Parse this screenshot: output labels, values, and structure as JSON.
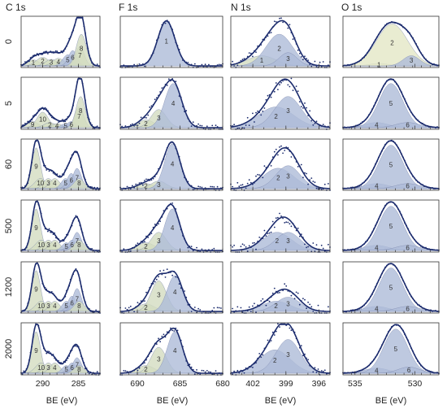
{
  "chart_data": {
    "type": "line",
    "xlabel": "BE (eV)",
    "colors": {
      "fit": "#1c2c6e",
      "points": "#1c2c6e",
      "blue_peak": "#aebcd8",
      "green_peak": "#d3dcc0",
      "yellow_peak": "#e3e7c6"
    },
    "columns": [
      {
        "title": "C 1s",
        "x_range": [
          293,
          282
        ],
        "ticks": [
          290,
          285
        ],
        "tick_labels": [
          "290",
          "285"
        ]
      },
      {
        "title": "F 1s",
        "x_range": [
          692,
          680
        ],
        "ticks": [
          690,
          685,
          680
        ],
        "tick_labels": [
          "690",
          "685",
          "680"
        ]
      },
      {
        "title": "N 1s",
        "x_range": [
          404,
          395
        ],
        "ticks": [
          402,
          399,
          396
        ],
        "tick_labels": [
          "402",
          "399",
          "396"
        ]
      },
      {
        "title": "O 1s",
        "x_range": [
          536,
          528
        ],
        "ticks": [
          535,
          530
        ],
        "tick_labels": [
          "535",
          "530"
        ]
      }
    ],
    "rows": [
      "0",
      "5",
      "60",
      "500",
      "1200",
      "2000"
    ],
    "panels": [
      [
        {
          "noise": 0.02,
          "peaks": [
            {
              "label": "1",
              "c": 291.3,
              "a": 0.12,
              "w": 0.8,
              "color": "green_peak"
            },
            {
              "label": "2",
              "c": 290.0,
              "a": 0.17,
              "w": 0.9,
              "color": "green_peak"
            },
            {
              "label": "3",
              "c": 288.8,
              "a": 0.13,
              "w": 0.8,
              "color": "green_peak"
            },
            {
              "label": "4",
              "c": 287.8,
              "a": 0.15,
              "w": 0.8,
              "color": "green_peak"
            },
            {
              "label": "5",
              "c": 286.5,
              "a": 0.22,
              "w": 0.7,
              "color": "blue_peak"
            },
            {
              "label": "6",
              "c": 285.8,
              "a": 0.3,
              "w": 0.6,
              "color": "blue_peak"
            },
            {
              "label": "7",
              "c": 284.8,
              "a": 0.38,
              "w": 0.6,
              "color": "green_peak"
            },
            {
              "label": "8",
              "c": 284.6,
              "a": 0.62,
              "w": 0.7,
              "color": "green_peak"
            }
          ]
        },
        {
          "noise": 0.03,
          "peaks": [
            {
              "label": "1",
              "c": 686.6,
              "a": 0.88,
              "w": 1.0,
              "color": "blue_peak"
            }
          ]
        },
        {
          "noise": 0.07,
          "peaks": [
            {
              "label": "1",
              "c": 401.2,
              "a": 0.2,
              "w": 1.3,
              "color": "green_peak"
            },
            {
              "label": "2",
              "c": 399.6,
              "a": 0.62,
              "w": 1.2,
              "color": "blue_peak"
            },
            {
              "label": "3",
              "c": 398.8,
              "a": 0.26,
              "w": 0.8,
              "color": "blue_peak"
            }
          ]
        },
        {
          "noise": 0.0,
          "peaks": [
            {
              "label": "1",
              "c": 533.0,
              "a": 0.05,
              "w": 0.8,
              "color": "yellow_peak"
            },
            {
              "label": "2",
              "c": 531.9,
              "a": 0.82,
              "w": 1.3,
              "color": "yellow_peak"
            },
            {
              "label": "3",
              "c": 530.3,
              "a": 0.2,
              "w": 0.7,
              "color": "blue_peak"
            }
          ]
        }
      ],
      [
        {
          "noise": 0.02,
          "peaks": [
            {
              "label": "9",
              "c": 291.4,
              "a": 0.12,
              "w": 0.8,
              "color": "green_peak"
            },
            {
              "label": "10",
              "c": 290.0,
              "a": 0.3,
              "w": 0.8,
              "color": "green_peak"
            },
            {
              "label": "2",
              "c": 289.0,
              "a": 0.1,
              "w": 0.8,
              "color": "green_peak"
            },
            {
              "label": "4",
              "c": 288.0,
              "a": 0.08,
              "w": 0.7,
              "color": "green_peak"
            },
            {
              "label": "5",
              "c": 286.8,
              "a": 0.08,
              "w": 0.6,
              "color": "blue_peak"
            },
            {
              "label": "6",
              "c": 286.0,
              "a": 0.12,
              "w": 0.6,
              "color": "blue_peak"
            },
            {
              "label": "7",
              "c": 284.9,
              "a": 0.4,
              "w": 0.6,
              "color": "green_peak"
            },
            {
              "label": "8",
              "c": 284.7,
              "a": 0.6,
              "w": 0.65,
              "color": "green_peak"
            }
          ]
        },
        {
          "noise": 0.05,
          "peaks": [
            {
              "label": "2",
              "c": 689.0,
              "a": 0.15,
              "w": 1.0,
              "color": "green_peak"
            },
            {
              "label": "3",
              "c": 687.5,
              "a": 0.35,
              "w": 0.9,
              "color": "green_peak"
            },
            {
              "label": "4",
              "c": 685.8,
              "a": 0.85,
              "w": 1.0,
              "color": "blue_peak"
            }
          ]
        },
        {
          "noise": 0.1,
          "peaks": [
            {
              "label": "2",
              "c": 399.9,
              "a": 0.4,
              "w": 1.6,
              "color": "blue_peak"
            },
            {
              "label": "3",
              "c": 398.8,
              "a": 0.6,
              "w": 1.2,
              "color": "blue_peak"
            }
          ]
        },
        {
          "noise": 0.0,
          "peaks": [
            {
              "label": "4",
              "c": 533.2,
              "a": 0.1,
              "w": 1.0,
              "color": "blue_peak"
            },
            {
              "label": "5",
              "c": 532.0,
              "a": 0.85,
              "w": 1.0,
              "color": "blue_peak"
            },
            {
              "label": "6",
              "c": 530.6,
              "a": 0.1,
              "w": 1.0,
              "color": "blue_peak"
            }
          ]
        }
      ],
      [
        {
          "noise": 0.02,
          "peaks": [
            {
              "label": "9",
              "c": 290.9,
              "a": 0.8,
              "w": 0.6,
              "color": "green_peak"
            },
            {
              "label": "10",
              "c": 290.3,
              "a": 0.2,
              "w": 0.8,
              "color": "green_peak"
            },
            {
              "label": "3",
              "c": 289.2,
              "a": 0.2,
              "w": 0.7,
              "color": "green_peak"
            },
            {
              "label": "4",
              "c": 288.3,
              "a": 0.2,
              "w": 0.7,
              "color": "green_peak"
            },
            {
              "label": "5",
              "c": 286.8,
              "a": 0.2,
              "w": 0.6,
              "color": "blue_peak"
            },
            {
              "label": "6",
              "c": 286.0,
              "a": 0.3,
              "w": 0.6,
              "color": "blue_peak"
            },
            {
              "label": "7",
              "c": 285.2,
              "a": 0.4,
              "w": 0.6,
              "color": "blue_peak"
            },
            {
              "label": "8",
              "c": 284.9,
              "a": 0.2,
              "w": 0.7,
              "color": "green_peak"
            }
          ]
        },
        {
          "noise": 0.03,
          "peaks": [
            {
              "label": "2",
              "c": 689.0,
              "a": 0.1,
              "w": 1.0,
              "color": "green_peak"
            },
            {
              "label": "3",
              "c": 687.5,
              "a": 0.15,
              "w": 0.9,
              "color": "green_peak"
            },
            {
              "label": "4",
              "c": 685.9,
              "a": 0.88,
              "w": 0.9,
              "color": "blue_peak"
            }
          ]
        },
        {
          "noise": 0.1,
          "peaks": [
            {
              "label": "2",
              "c": 399.7,
              "a": 0.4,
              "w": 1.4,
              "color": "blue_peak"
            },
            {
              "label": "3",
              "c": 398.8,
              "a": 0.45,
              "w": 1.1,
              "color": "blue_peak"
            }
          ]
        },
        {
          "noise": 0.0,
          "peaks": [
            {
              "label": "4",
              "c": 533.2,
              "a": 0.1,
              "w": 1.0,
              "color": "blue_peak"
            },
            {
              "label": "5",
              "c": 532.0,
              "a": 0.85,
              "w": 1.0,
              "color": "blue_peak"
            },
            {
              "label": "6",
              "c": 530.6,
              "a": 0.1,
              "w": 1.0,
              "color": "blue_peak"
            }
          ]
        }
      ],
      [
        {
          "noise": 0.02,
          "peaks": [
            {
              "label": "9",
              "c": 290.9,
              "a": 0.8,
              "w": 0.6,
              "color": "green_peak"
            },
            {
              "label": "10",
              "c": 290.2,
              "a": 0.2,
              "w": 0.8,
              "color": "green_peak"
            },
            {
              "label": "3",
              "c": 289.2,
              "a": 0.2,
              "w": 0.7,
              "color": "green_peak"
            },
            {
              "label": "4",
              "c": 288.3,
              "a": 0.2,
              "w": 0.7,
              "color": "green_peak"
            },
            {
              "label": "5",
              "c": 286.7,
              "a": 0.15,
              "w": 0.6,
              "color": "blue_peak"
            },
            {
              "label": "6",
              "c": 285.9,
              "a": 0.2,
              "w": 0.6,
              "color": "blue_peak"
            },
            {
              "label": "7",
              "c": 285.2,
              "a": 0.35,
              "w": 0.6,
              "color": "blue_peak"
            },
            {
              "label": "8",
              "c": 284.9,
              "a": 0.2,
              "w": 0.7,
              "color": "green_peak"
            }
          ]
        },
        {
          "noise": 0.04,
          "peaks": [
            {
              "label": "2",
              "c": 689.0,
              "a": 0.15,
              "w": 1.0,
              "color": "green_peak"
            },
            {
              "label": "3",
              "c": 687.5,
              "a": 0.35,
              "w": 0.9,
              "color": "green_peak"
            },
            {
              "label": "4",
              "c": 685.9,
              "a": 0.8,
              "w": 0.9,
              "color": "blue_peak"
            }
          ]
        },
        {
          "noise": 0.1,
          "peaks": [
            {
              "label": "2",
              "c": 399.8,
              "a": 0.35,
              "w": 1.3,
              "color": "blue_peak"
            },
            {
              "label": "3",
              "c": 398.8,
              "a": 0.35,
              "w": 1.1,
              "color": "blue_peak"
            }
          ]
        },
        {
          "noise": 0.0,
          "peaks": [
            {
              "label": "4",
              "c": 533.2,
              "a": 0.1,
              "w": 1.0,
              "color": "blue_peak"
            },
            {
              "label": "5",
              "c": 532.0,
              "a": 0.85,
              "w": 1.0,
              "color": "blue_peak"
            },
            {
              "label": "6",
              "c": 530.6,
              "a": 0.1,
              "w": 1.0,
              "color": "blue_peak"
            }
          ]
        }
      ],
      [
        {
          "noise": 0.02,
          "peaks": [
            {
              "label": "9",
              "c": 290.9,
              "a": 0.8,
              "w": 0.6,
              "color": "green_peak"
            },
            {
              "label": "10",
              "c": 290.2,
              "a": 0.2,
              "w": 0.8,
              "color": "green_peak"
            },
            {
              "label": "3",
              "c": 289.2,
              "a": 0.2,
              "w": 0.7,
              "color": "green_peak"
            },
            {
              "label": "4",
              "c": 288.3,
              "a": 0.2,
              "w": 0.7,
              "color": "green_peak"
            },
            {
              "label": "5",
              "c": 286.7,
              "a": 0.2,
              "w": 0.6,
              "color": "blue_peak"
            },
            {
              "label": "6",
              "c": 285.9,
              "a": 0.3,
              "w": 0.6,
              "color": "blue_peak"
            },
            {
              "label": "7",
              "c": 285.2,
              "a": 0.45,
              "w": 0.6,
              "color": "blue_peak"
            },
            {
              "label": "8",
              "c": 284.9,
              "a": 0.2,
              "w": 0.7,
              "color": "green_peak"
            }
          ]
        },
        {
          "noise": 0.07,
          "peaks": [
            {
              "label": "2",
              "c": 689.0,
              "a": 0.15,
              "w": 1.0,
              "color": "green_peak"
            },
            {
              "label": "3",
              "c": 687.5,
              "a": 0.6,
              "w": 0.9,
              "color": "green_peak"
            },
            {
              "label": "4",
              "c": 685.6,
              "a": 0.7,
              "w": 0.9,
              "color": "blue_peak"
            }
          ]
        },
        {
          "noise": 0.1,
          "peaks": [
            {
              "label": "2",
              "c": 399.9,
              "a": 0.2,
              "w": 1.3,
              "color": "blue_peak"
            },
            {
              "label": "3",
              "c": 398.8,
              "a": 0.28,
              "w": 1.1,
              "color": "blue_peak"
            }
          ]
        },
        {
          "noise": 0.0,
          "peaks": [
            {
              "label": "4",
              "c": 533.2,
              "a": 0.1,
              "w": 1.0,
              "color": "blue_peak"
            },
            {
              "label": "5",
              "c": 532.0,
              "a": 0.85,
              "w": 1.0,
              "color": "blue_peak"
            },
            {
              "label": "6",
              "c": 530.6,
              "a": 0.1,
              "w": 1.0,
              "color": "blue_peak"
            }
          ]
        }
      ],
      [
        {
          "noise": 0.02,
          "peaks": [
            {
              "label": "9",
              "c": 290.9,
              "a": 0.8,
              "w": 0.6,
              "color": "green_peak"
            },
            {
              "label": "10",
              "c": 290.2,
              "a": 0.2,
              "w": 0.8,
              "color": "green_peak"
            },
            {
              "label": "3",
              "c": 289.2,
              "a": 0.2,
              "w": 0.7,
              "color": "green_peak"
            },
            {
              "label": "4",
              "c": 288.3,
              "a": 0.2,
              "w": 0.7,
              "color": "green_peak"
            },
            {
              "label": "5",
              "c": 286.7,
              "a": 0.15,
              "w": 0.6,
              "color": "blue_peak"
            },
            {
              "label": "6",
              "c": 285.9,
              "a": 0.2,
              "w": 0.6,
              "color": "blue_peak"
            },
            {
              "label": "7",
              "c": 285.2,
              "a": 0.3,
              "w": 0.6,
              "color": "blue_peak"
            },
            {
              "label": "8",
              "c": 284.9,
              "a": 0.15,
              "w": 0.7,
              "color": "green_peak"
            }
          ]
        },
        {
          "noise": 0.04,
          "peaks": [
            {
              "label": "2",
              "c": 689.0,
              "a": 0.15,
              "w": 1.0,
              "color": "green_peak"
            },
            {
              "label": "3",
              "c": 687.5,
              "a": 0.5,
              "w": 0.9,
              "color": "green_peak"
            },
            {
              "label": "4",
              "c": 685.6,
              "a": 0.8,
              "w": 0.9,
              "color": "blue_peak"
            }
          ]
        },
        {
          "noise": 0.06,
          "peaks": [
            {
              "label": "2",
              "c": 400.0,
              "a": 0.45,
              "w": 1.4,
              "color": "blue_peak"
            },
            {
              "label": "3",
              "c": 398.8,
              "a": 0.65,
              "w": 1.1,
              "color": "blue_peak"
            }
          ]
        },
        {
          "noise": 0.0,
          "peaks": [
            {
              "label": "4",
              "c": 533.2,
              "a": 0.1,
              "w": 1.0,
              "color": "blue_peak"
            },
            {
              "label": "5",
              "c": 531.6,
              "a": 0.85,
              "w": 1.0,
              "color": "blue_peak"
            },
            {
              "label": "6",
              "c": 530.5,
              "a": 0.12,
              "w": 0.9,
              "color": "blue_peak"
            }
          ]
        }
      ]
    ]
  }
}
